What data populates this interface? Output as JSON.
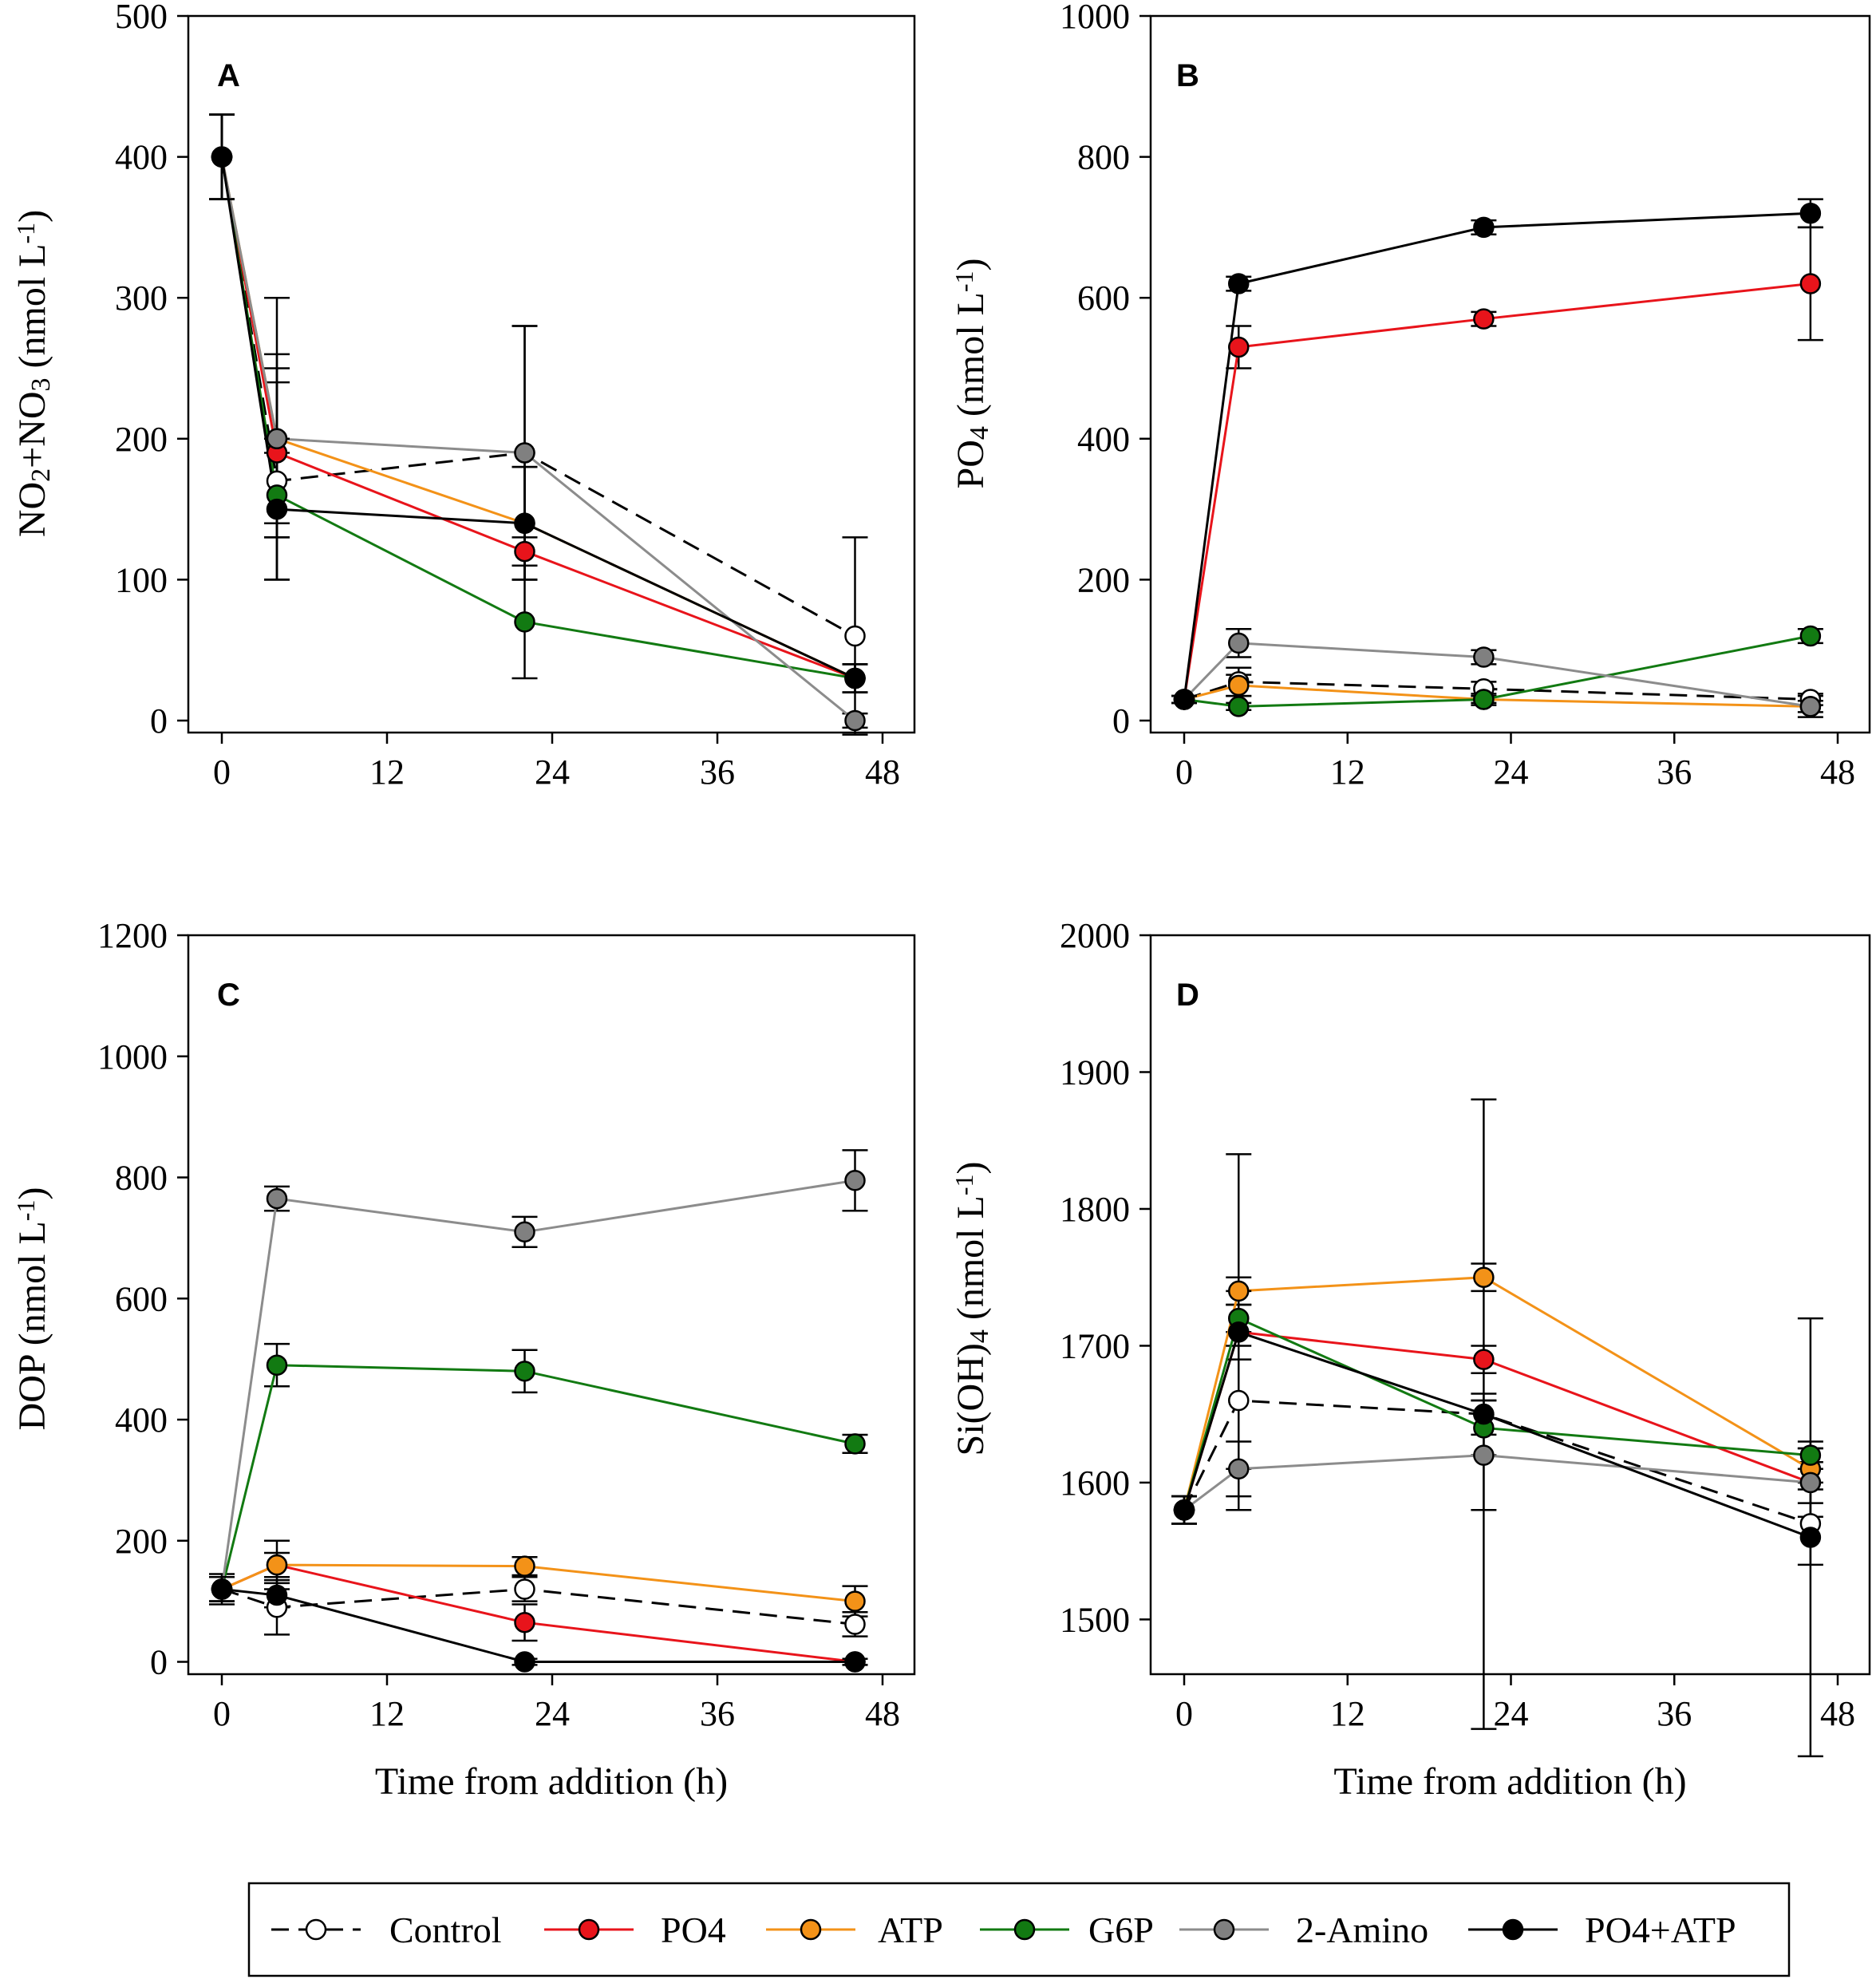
{
  "chart_data": [
    {
      "type": "line",
      "panel": "A",
      "title": "",
      "xlabel": "",
      "ylabel": "NO2+NO3 (nmol L-1)",
      "ylabel_parts": {
        "a": "NO",
        "a_sub": "2",
        "b": "+NO",
        "b_sub": "3",
        "c": " (nmol L",
        "sup": "-1",
        "d": ")"
      },
      "xlim": [
        -2,
        50
      ],
      "ylim": [
        0,
        500
      ],
      "xticks": [
        "0",
        "12",
        "24",
        "36",
        "48"
      ],
      "yticks": [
        "0",
        "100",
        "200",
        "300",
        "400",
        "500"
      ],
      "x": [
        0,
        4,
        22,
        46
      ],
      "series": [
        {
          "name": "Control",
          "values": [
            400,
            170,
            190,
            60
          ],
          "errors": [
            30,
            70,
            90,
            70
          ]
        },
        {
          "name": "PO4",
          "values": [
            400,
            190,
            120,
            30
          ],
          "errors": [
            30,
            60,
            10,
            10
          ]
        },
        {
          "name": "ATP",
          "values": [
            400,
            200,
            140,
            30
          ],
          "errors": [
            30,
            60,
            40,
            10
          ]
        },
        {
          "name": "G6P",
          "values": [
            400,
            160,
            70,
            30
          ],
          "errors": [
            30,
            30,
            40,
            10
          ]
        },
        {
          "name": "2-Amino",
          "values": [
            400,
            200,
            190,
            0
          ],
          "errors": [
            30,
            100,
            90,
            5
          ]
        },
        {
          "name": "PO4+ATP",
          "values": [
            400,
            150,
            140,
            30
          ],
          "errors": [
            30,
            50,
            40,
            10
          ]
        }
      ]
    },
    {
      "type": "line",
      "panel": "B",
      "title": "",
      "xlabel": "",
      "ylabel": "PO4 (nmol L-1)",
      "ylabel_parts": {
        "a": "PO",
        "a_sub": "4",
        "c": " (nmol L",
        "sup": "-1",
        "d": ")"
      },
      "xlim": [
        -2,
        50
      ],
      "ylim": [
        0,
        1000
      ],
      "xticks": [
        "0",
        "12",
        "24",
        "36",
        "48"
      ],
      "yticks": [
        "0",
        "200",
        "400",
        "600",
        "800",
        "1000"
      ],
      "x": [
        0,
        4,
        22,
        46
      ],
      "series": [
        {
          "name": "Control",
          "values": [
            30,
            55,
            45,
            30
          ],
          "errors": [
            5,
            20,
            10,
            8
          ]
        },
        {
          "name": "PO4",
          "values": [
            30,
            530,
            570,
            620
          ],
          "errors": [
            5,
            30,
            10,
            80
          ]
        },
        {
          "name": "ATP",
          "values": [
            30,
            50,
            30,
            20
          ],
          "errors": [
            5,
            15,
            8,
            8
          ]
        },
        {
          "name": "G6P",
          "values": [
            30,
            20,
            30,
            120
          ],
          "errors": [
            5,
            5,
            5,
            10
          ]
        },
        {
          "name": "2-Amino",
          "values": [
            30,
            110,
            90,
            20
          ],
          "errors": [
            5,
            20,
            10,
            15
          ]
        },
        {
          "name": "PO4+ATP",
          "values": [
            30,
            620,
            700,
            720
          ],
          "errors": [
            5,
            10,
            10,
            20
          ]
        }
      ]
    },
    {
      "type": "line",
      "panel": "C",
      "title": "",
      "xlabel": "Time from addition (h)",
      "ylabel": "DOP (nmol L-1)",
      "ylabel_parts": {
        "a": "DOP",
        "c": " (nmol L",
        "sup": "-1",
        "d": ")"
      },
      "xlim": [
        -2,
        50
      ],
      "ylim": [
        0,
        1200
      ],
      "xticks": [
        "0",
        "12",
        "24",
        "36",
        "48"
      ],
      "yticks": [
        "0",
        "200",
        "400",
        "600",
        "800",
        "1000",
        "1200"
      ],
      "x": [
        0,
        4,
        22,
        46
      ],
      "series": [
        {
          "name": "Control",
          "values": [
            120,
            90,
            120,
            62
          ],
          "errors": [
            25,
            45,
            20,
            20
          ]
        },
        {
          "name": "PO4",
          "values": [
            120,
            160,
            65,
            0
          ],
          "errors": [
            20,
            40,
            30,
            5
          ]
        },
        {
          "name": "ATP",
          "values": [
            120,
            160,
            158,
            100
          ],
          "errors": [
            20,
            20,
            15,
            25
          ]
        },
        {
          "name": "G6P",
          "values": [
            120,
            490,
            480,
            360
          ],
          "errors": [
            20,
            35,
            35,
            15
          ]
        },
        {
          "name": "2-Amino",
          "values": [
            120,
            765,
            710,
            795
          ],
          "errors": [
            20,
            20,
            25,
            50
          ]
        },
        {
          "name": "PO4+ATP",
          "values": [
            120,
            110,
            0,
            0
          ],
          "errors": [
            20,
            20,
            5,
            5
          ]
        }
      ]
    },
    {
      "type": "line",
      "panel": "D",
      "title": "",
      "xlabel": "Time from addition (h)",
      "ylabel": "Si(OH)4 (nmol L-1)",
      "ylabel_parts": {
        "a": "Si(OH)",
        "a_sub": "4",
        "c": " (nmol L",
        "sup": "-1",
        "d": ")"
      },
      "xlim": [
        -2,
        50
      ],
      "ylim": [
        1450,
        2000
      ],
      "xticks": [
        "0",
        "12",
        "24",
        "36",
        "48"
      ],
      "yticks": [
        "1500",
        "1600",
        "1700",
        "1800",
        "1900",
        "2000"
      ],
      "x": [
        0,
        4,
        22,
        46
      ],
      "series": [
        {
          "name": "Control",
          "values": [
            1580,
            1660,
            1650,
            1570
          ],
          "errors": [
            10,
            50,
            15,
            30
          ]
        },
        {
          "name": "PO4",
          "values": [
            1580,
            1710,
            1690,
            1600
          ],
          "errors": [
            10,
            20,
            10,
            15
          ]
        },
        {
          "name": "ATP",
          "values": [
            1580,
            1740,
            1750,
            1610
          ],
          "errors": [
            10,
            10,
            10,
            15
          ]
        },
        {
          "name": "G6P",
          "values": [
            1580,
            1720,
            1640,
            1620
          ],
          "errors": [
            10,
            20,
            20,
            10
          ]
        },
        {
          "name": "2-Amino",
          "values": [
            1580,
            1610,
            1620,
            1600
          ],
          "errors": [
            10,
            20,
            40,
            25
          ]
        },
        {
          "name": "PO4+ATP",
          "values": [
            1580,
            1710,
            1650,
            1560
          ],
          "errors": [
            10,
            130,
            230,
            160
          ]
        }
      ]
    }
  ],
  "legend": {
    "items": [
      {
        "name": "Control",
        "label": "Control"
      },
      {
        "name": "PO4",
        "label": "PO4"
      },
      {
        "name": "ATP",
        "label": "ATP"
      },
      {
        "name": "G6P",
        "label": "G6P"
      },
      {
        "name": "2-Amino",
        "label": "2-Amino"
      },
      {
        "name": "PO4+ATP",
        "label": "PO4+ATP"
      }
    ]
  },
  "series_styles": {
    "Control": {
      "line": "#000000",
      "fill": "#ffffff",
      "dashed": true
    },
    "PO4": {
      "line": "#e8141b",
      "fill": "#e8141b",
      "dashed": false
    },
    "ATP": {
      "line": "#f39218",
      "fill": "#f39218",
      "dashed": false
    },
    "G6P": {
      "line": "#127a12",
      "fill": "#127a12",
      "dashed": false
    },
    "2-Amino": {
      "line": "#8c8c8c",
      "fill": "#808080",
      "dashed": false
    },
    "PO4+ATP": {
      "line": "#000000",
      "fill": "#000000",
      "dashed": false
    }
  }
}
